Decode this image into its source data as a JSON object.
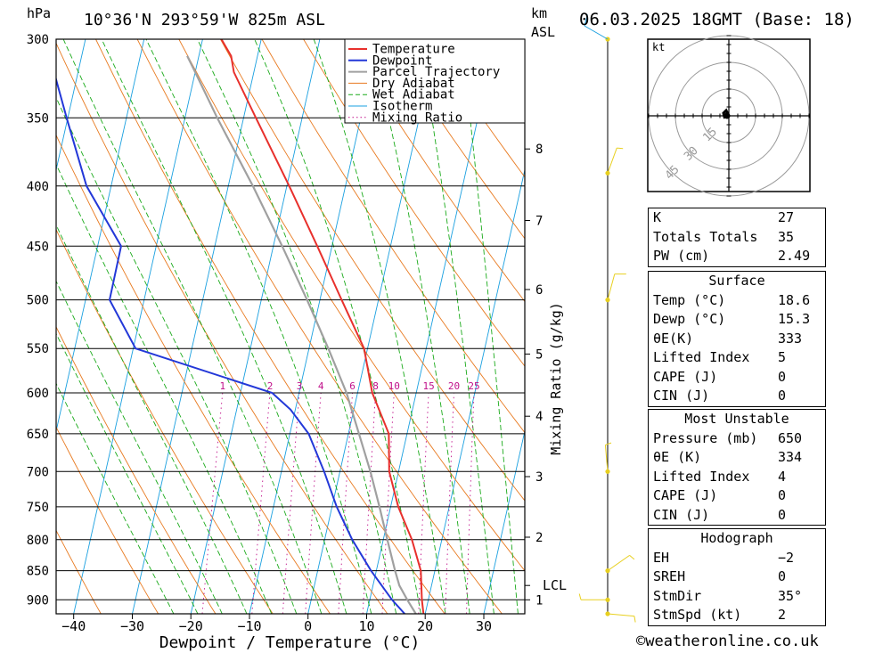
{
  "header": {
    "location": "10°36'N 293°59'W 825m ASL",
    "datetime": "06.03.2025 18GMT (Base: 18)",
    "pressure_unit": "hPa",
    "height_unit_line1": "km",
    "height_unit_line2": "ASL"
  },
  "colors": {
    "temperature": "#e8302c",
    "dewpoint": "#2338d8",
    "parcel": "#a0a0a0",
    "dry_adiabat": "#e87a20",
    "wet_adiabat": "#1aaa1a",
    "isotherm": "#1aa0e0",
    "mixing_ratio": "#c0108a",
    "wind": "#e8d020"
  },
  "legend": [
    {
      "label": "Temperature",
      "style": "temperature"
    },
    {
      "label": "Dewpoint",
      "style": "dewpoint"
    },
    {
      "label": "Parcel Trajectory",
      "style": "parcel"
    },
    {
      "label": "Dry Adiabat",
      "style": "dry_adiabat"
    },
    {
      "label": "Wet Adiabat",
      "style": "wet_adiabat"
    },
    {
      "label": "Isotherm",
      "style": "isotherm"
    },
    {
      "label": "Mixing Ratio",
      "style": "mixing_ratio"
    }
  ],
  "chart_data": {
    "type": "line",
    "xlabel": "Dewpoint / Temperature (°C)",
    "ylabel": "hPa",
    "secondary_ylabel": "Mixing Ratio (g/kg)",
    "x_ticks": [
      -40,
      -30,
      -20,
      -10,
      0,
      10,
      20,
      30
    ],
    "x_tick_labels": [
      "−40",
      "−30",
      "−20",
      "−10",
      "0",
      "10",
      "20",
      "30"
    ],
    "pressure_levels": [
      300,
      350,
      400,
      450,
      500,
      550,
      600,
      650,
      700,
      750,
      800,
      850,
      900
    ],
    "pressure_range": [
      300,
      925
    ],
    "temp_range_bottom": [
      -43,
      37
    ],
    "skew_degC_per_decade": 45,
    "km_ticks": [
      {
        "label": "8",
        "pressure": 372
      },
      {
        "label": "7",
        "pressure": 428
      },
      {
        "label": "6",
        "pressure": 490
      },
      {
        "label": "5",
        "pressure": 556
      },
      {
        "label": "4",
        "pressure": 628
      },
      {
        "label": "3",
        "pressure": 707
      },
      {
        "label": "2",
        "pressure": 796
      },
      {
        "label": "1",
        "pressure": 900
      }
    ],
    "lcl": {
      "label": "LCL",
      "pressure": 875
    },
    "mixing_ratio_values": [
      1,
      2,
      3,
      4,
      6,
      8,
      10,
      15,
      20,
      25
    ],
    "mixing_ratio_labels": [
      "1",
      "2",
      "3",
      "4",
      "6",
      "8",
      "10",
      "15",
      "20",
      "25"
    ],
    "series": [
      {
        "name": "Temperature",
        "points": [
          [
            925,
            19.7
          ],
          [
            900,
            18.9
          ],
          [
            850,
            17.6
          ],
          [
            800,
            14.9
          ],
          [
            750,
            11.3
          ],
          [
            700,
            8.4
          ],
          [
            650,
            6.9
          ],
          [
            600,
            2.5
          ],
          [
            550,
            -0.6
          ],
          [
            500,
            -6.3
          ],
          [
            450,
            -12.5
          ],
          [
            400,
            -19.6
          ],
          [
            350,
            -27.9
          ],
          [
            320,
            -33.4
          ],
          [
            310,
            -34.5
          ],
          [
            300,
            -36.8
          ]
        ]
      },
      {
        "name": "Dewpoint",
        "points": [
          [
            925,
            16.5
          ],
          [
            900,
            13.8
          ],
          [
            850,
            9.1
          ],
          [
            800,
            4.7
          ],
          [
            750,
            0.8
          ],
          [
            700,
            -2.7
          ],
          [
            650,
            -6.8
          ],
          [
            620,
            -10.8
          ],
          [
            600,
            -14.6
          ],
          [
            550,
            -39.6
          ],
          [
            500,
            -45.9
          ],
          [
            450,
            -46.0
          ],
          [
            400,
            -54.2
          ],
          [
            350,
            -60.2
          ],
          [
            300,
            -66.9
          ]
        ]
      },
      {
        "name": "Parcel Trajectory",
        "points": [
          [
            925,
            18.4
          ],
          [
            900,
            16.4
          ],
          [
            875,
            14.5
          ],
          [
            850,
            13.2
          ],
          [
            800,
            10.7
          ],
          [
            750,
            8.1
          ],
          [
            700,
            5.2
          ],
          [
            650,
            1.8
          ],
          [
            600,
            -1.9
          ],
          [
            550,
            -6.7
          ],
          [
            500,
            -12.2
          ],
          [
            450,
            -18.5
          ],
          [
            400,
            -25.8
          ],
          [
            350,
            -34.5
          ],
          [
            320,
            -40.0
          ],
          [
            310,
            -42.0
          ]
        ]
      }
    ],
    "wind_barbs": [
      {
        "pressure": 300,
        "dir_deg": 300,
        "speed_kt": 10
      },
      {
        "pressure": 390,
        "dir_deg": 20,
        "speed_kt": 5
      },
      {
        "pressure": 500,
        "dir_deg": 15,
        "speed_kt": 10
      },
      {
        "pressure": 700,
        "dir_deg": 355,
        "speed_kt": 5
      },
      {
        "pressure": 850,
        "dir_deg": 55,
        "speed_kt": 5
      },
      {
        "pressure": 900,
        "dir_deg": 270,
        "speed_kt": 5
      },
      {
        "pressure": 925,
        "dir_deg": 95,
        "speed_kt": 5
      }
    ]
  },
  "hodograph": {
    "unit": "kt",
    "ring_labels": [
      "15",
      "30",
      "45"
    ],
    "ring_values": [
      15,
      30,
      45
    ],
    "points": [
      [
        0,
        0
      ],
      [
        -0.5,
        1
      ],
      [
        -1,
        2
      ],
      [
        -2,
        1
      ],
      [
        -1.5,
        -1
      ]
    ]
  },
  "indices": {
    "general": [
      {
        "key": "K",
        "value": "27"
      },
      {
        "key": "Totals Totals",
        "value": "35"
      },
      {
        "key": "PW (cm)",
        "value": "2.49"
      }
    ],
    "surface": {
      "title": "Surface",
      "rows": [
        {
          "key": "Temp (°C)",
          "value": "18.6"
        },
        {
          "key": "Dewp (°C)",
          "value": "15.3"
        },
        {
          "key": "θE(K)",
          "value": "333"
        },
        {
          "key": "Lifted Index",
          "value": "5"
        },
        {
          "key": "CAPE (J)",
          "value": "0"
        },
        {
          "key": "CIN (J)",
          "value": "0"
        }
      ]
    },
    "most_unstable": {
      "title": "Most Unstable",
      "rows": [
        {
          "key": "Pressure (mb)",
          "value": "650"
        },
        {
          "key": "θE (K)",
          "value": "334"
        },
        {
          "key": "Lifted Index",
          "value": "4"
        },
        {
          "key": "CAPE (J)",
          "value": "0"
        },
        {
          "key": "CIN (J)",
          "value": "0"
        }
      ]
    },
    "hodograph": {
      "title": "Hodograph",
      "rows": [
        {
          "key": "EH",
          "value": "−2"
        },
        {
          "key": "SREH",
          "value": "0"
        },
        {
          "key": "StmDir",
          "value": "35°"
        },
        {
          "key": "StmSpd (kt)",
          "value": "2"
        }
      ]
    }
  },
  "footer": {
    "copyright": "©weatheronline.co.uk"
  }
}
